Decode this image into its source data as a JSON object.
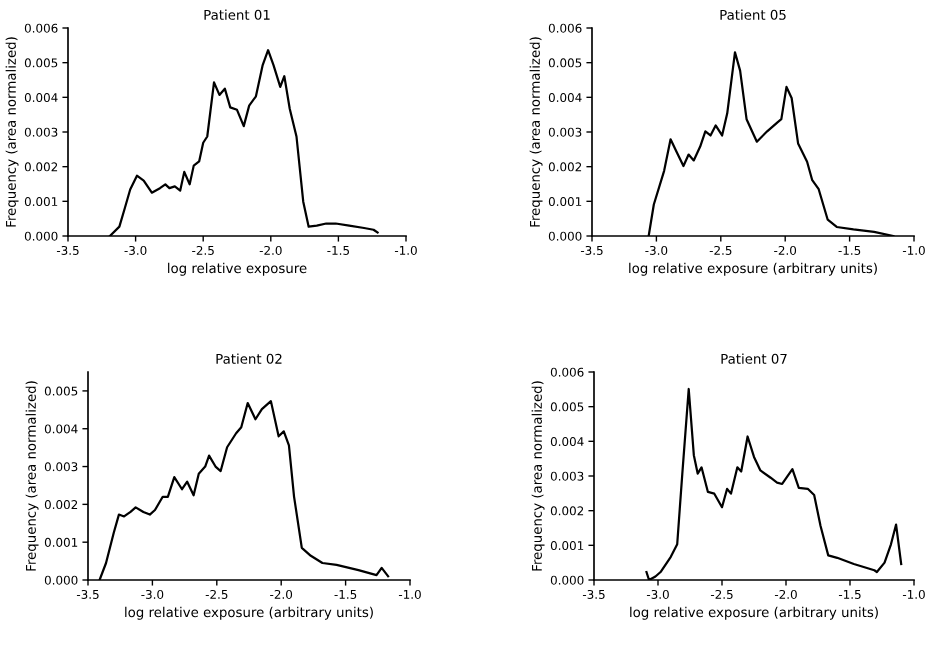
{
  "chart_data": [
    {
      "type": "line",
      "title": "Patient 01",
      "xlabel": "log relative exposure",
      "ylabel": "Frequency (area normalized)",
      "color": "#000000",
      "x": [
        -3.19,
        -3.12,
        -3.08,
        -3.04,
        -2.99,
        -2.94,
        -2.88,
        -2.82,
        -2.78,
        -2.75,
        -2.71,
        -2.67,
        -2.64,
        -2.6,
        -2.57,
        -2.53,
        -2.5,
        -2.47,
        -2.42,
        -2.38,
        -2.34,
        -2.3,
        -2.25,
        -2.2,
        -2.16,
        -2.11,
        -2.06,
        -2.02,
        -1.98,
        -1.93,
        -1.9,
        -1.86,
        -1.81,
        -1.76,
        -1.72,
        -1.66,
        -1.59,
        -1.52,
        -1.42,
        -1.31,
        -1.24,
        -1.21
      ],
      "values": [
        0,
        0.00027,
        0.0008,
        0.00134,
        0.00174,
        0.0016,
        0.00125,
        0.00138,
        0.00149,
        0.00138,
        0.00143,
        0.00131,
        0.00185,
        0.00149,
        0.00203,
        0.00215,
        0.00269,
        0.00287,
        0.00443,
        0.00407,
        0.00425,
        0.00371,
        0.00364,
        0.00317,
        0.00376,
        0.00403,
        0.00493,
        0.00536,
        0.00493,
        0.0043,
        0.00461,
        0.00367,
        0.00287,
        0.00099,
        0.00027,
        0.0003,
        0.00036,
        0.00036,
        0.0003,
        0.00023,
        0.00018,
        0.0001
      ],
      "xlim": [
        -3.5,
        -1.0
      ],
      "ylim": [
        0,
        0.006
      ],
      "xticks": [
        {
          "value": -3.5,
          "label": "-3.5"
        },
        {
          "value": -3.0,
          "label": "-3.0"
        },
        {
          "value": -2.5,
          "label": "-2.5"
        },
        {
          "value": -2.0,
          "label": "-2.0"
        },
        {
          "value": -1.5,
          "label": "-1.5"
        },
        {
          "value": -1.0,
          "label": "-1.0"
        }
      ],
      "yticks": [
        {
          "value": 0,
          "label": "0.000"
        },
        {
          "value": 0.001,
          "label": "0.001"
        },
        {
          "value": 0.002,
          "label": "0.002"
        },
        {
          "value": 0.003,
          "label": "0.003"
        },
        {
          "value": 0.004,
          "label": "0.004"
        },
        {
          "value": 0.005,
          "label": "0.005"
        },
        {
          "value": 0.006,
          "label": "0.006"
        }
      ],
      "grid": false,
      "marker": "none",
      "line_style": "solid"
    },
    {
      "type": "line",
      "title": "Patient 05",
      "xlabel": "log relative exposure (arbitrary units)",
      "ylabel": "Frequency (area normalized)",
      "color": "#000000",
      "x": [
        -3.06,
        -3.02,
        -2.94,
        -2.89,
        -2.84,
        -2.79,
        -2.75,
        -2.71,
        -2.66,
        -2.62,
        -2.58,
        -2.54,
        -2.49,
        -2.45,
        -2.39,
        -2.35,
        -2.3,
        -2.22,
        -2.14,
        -2.06,
        -2.03,
        -1.99,
        -1.95,
        -1.9,
        -1.83,
        -1.79,
        -1.74,
        -1.67,
        -1.6,
        -1.47,
        -1.31,
        -1.16
      ],
      "values": [
        0,
        0.00091,
        0.00188,
        0.00279,
        0.0024,
        0.00202,
        0.00235,
        0.00218,
        0.00258,
        0.00302,
        0.0029,
        0.00319,
        0.0029,
        0.00354,
        0.0053,
        0.00477,
        0.00337,
        0.00272,
        0.00302,
        0.00328,
        0.00337,
        0.0043,
        0.00398,
        0.00267,
        0.00214,
        0.00161,
        0.00135,
        0.00047,
        0.00026,
        0.00019,
        0.00012,
        0
      ],
      "xlim": [
        -3.5,
        -1.0
      ],
      "ylim": [
        0,
        0.006
      ],
      "xticks": [
        {
          "value": -3.5,
          "label": "-3.5"
        },
        {
          "value": -3.0,
          "label": "-3.0"
        },
        {
          "value": -2.5,
          "label": "-2.5"
        },
        {
          "value": -2.0,
          "label": "-2.0"
        },
        {
          "value": -1.5,
          "label": "-1.5"
        },
        {
          "value": -1.0,
          "label": "-1.0"
        }
      ],
      "yticks": [
        {
          "value": 0,
          "label": "0.000"
        },
        {
          "value": 0.001,
          "label": "0.001"
        },
        {
          "value": 0.002,
          "label": "0.002"
        },
        {
          "value": 0.003,
          "label": "0.003"
        },
        {
          "value": 0.004,
          "label": "0.004"
        },
        {
          "value": 0.005,
          "label": "0.005"
        },
        {
          "value": 0.006,
          "label": "0.006"
        }
      ],
      "grid": false,
      "marker": "none",
      "line_style": "solid"
    },
    {
      "type": "line",
      "title": "Patient 02",
      "xlabel": "log relative exposure (arbitrary units)",
      "ylabel": "Frequency (area normalized)",
      "color": "#000000",
      "x": [
        -3.41,
        -3.36,
        -3.3,
        -3.26,
        -3.22,
        -3.17,
        -3.13,
        -3.07,
        -3.02,
        -2.98,
        -2.92,
        -2.88,
        -2.83,
        -2.77,
        -2.73,
        -2.68,
        -2.64,
        -2.59,
        -2.56,
        -2.51,
        -2.47,
        -2.42,
        -2.35,
        -2.31,
        -2.26,
        -2.2,
        -2.15,
        -2.08,
        -2.02,
        -1.98,
        -1.94,
        -1.9,
        -1.84,
        -1.77,
        -1.68,
        -1.57,
        -1.4,
        -1.26,
        -1.22,
        -1.17
      ],
      "values": [
        0,
        0.00045,
        0.00125,
        0.00173,
        0.00168,
        0.0018,
        0.00192,
        0.0018,
        0.00173,
        0.00185,
        0.0022,
        0.0022,
        0.00272,
        0.0024,
        0.0026,
        0.00224,
        0.00281,
        0.003,
        0.00329,
        0.003,
        0.00288,
        0.00351,
        0.00388,
        0.00404,
        0.00468,
        0.00425,
        0.00452,
        0.00473,
        0.0038,
        0.00393,
        0.00356,
        0.0022,
        0.00085,
        0.00064,
        0.00045,
        0.0004,
        0.00026,
        0.00013,
        0.00032,
        0.0001
      ],
      "xlim": [
        -3.5,
        -1.0
      ],
      "ylim": [
        0,
        0.0055
      ],
      "xticks": [
        {
          "value": -3.5,
          "label": "-3.5"
        },
        {
          "value": -3.0,
          "label": "-3.0"
        },
        {
          "value": -2.5,
          "label": "-2.5"
        },
        {
          "value": -2.0,
          "label": "-2.0"
        },
        {
          "value": -1.5,
          "label": "-1.5"
        },
        {
          "value": -1.0,
          "label": "-1.0"
        }
      ],
      "yticks": [
        {
          "value": 0,
          "label": "0.000"
        },
        {
          "value": 0.001,
          "label": "0.001"
        },
        {
          "value": 0.002,
          "label": "0.002"
        },
        {
          "value": 0.003,
          "label": "0.003"
        },
        {
          "value": 0.004,
          "label": "0.004"
        },
        {
          "value": 0.005,
          "label": "0.005"
        }
      ],
      "grid": false,
      "marker": "none",
      "line_style": "solid"
    },
    {
      "type": "line",
      "title": "Patient 07",
      "xlabel": "log relative exposure (arbitrary units)",
      "ylabel": "Frequency (area normalized)",
      "color": "#000000",
      "x": [
        -3.09,
        -3.07,
        -3.02,
        -2.98,
        -2.9,
        -2.85,
        -2.81,
        -2.76,
        -2.72,
        -2.69,
        -2.66,
        -2.61,
        -2.56,
        -2.5,
        -2.46,
        -2.43,
        -2.38,
        -2.35,
        -2.3,
        -2.25,
        -2.2,
        -2.12,
        -2.07,
        -2.03,
        -1.95,
        -1.9,
        -1.83,
        -1.78,
        -1.73,
        -1.67,
        -1.6,
        -1.47,
        -1.31,
        -1.29,
        -1.23,
        -1.18,
        -1.14,
        -1.1
      ],
      "values": [
        0.00023,
        0,
        0.0001,
        0.00023,
        0.00067,
        0.00103,
        0.00307,
        0.00551,
        0.0036,
        0.00307,
        0.00325,
        0.00254,
        0.00249,
        0.0021,
        0.00263,
        0.00249,
        0.00325,
        0.00313,
        0.00414,
        0.00355,
        0.00316,
        0.00295,
        0.00281,
        0.00277,
        0.0032,
        0.00266,
        0.00263,
        0.00245,
        0.00156,
        0.00071,
        0.00064,
        0.00046,
        0.00028,
        0.00023,
        0.0005,
        0.00103,
        0.0016,
        0.00046
      ],
      "xlim": [
        -3.5,
        -1.0
      ],
      "ylim": [
        0,
        0.006
      ],
      "xticks": [
        {
          "value": -3.5,
          "label": "-3.5"
        },
        {
          "value": -3.0,
          "label": "-3.0"
        },
        {
          "value": -2.5,
          "label": "-2.5"
        },
        {
          "value": -2.0,
          "label": "-2.0"
        },
        {
          "value": -1.5,
          "label": "-1.5"
        },
        {
          "value": -1.0,
          "label": "-1.0"
        }
      ],
      "yticks": [
        {
          "value": 0,
          "label": "0.000"
        },
        {
          "value": 0.001,
          "label": "0.001"
        },
        {
          "value": 0.002,
          "label": "0.002"
        },
        {
          "value": 0.003,
          "label": "0.003"
        },
        {
          "value": 0.004,
          "label": "0.004"
        },
        {
          "value": 0.005,
          "label": "0.005"
        },
        {
          "value": 0.006,
          "label": "0.006"
        }
      ],
      "grid": false,
      "marker": "none",
      "line_style": "solid"
    }
  ]
}
